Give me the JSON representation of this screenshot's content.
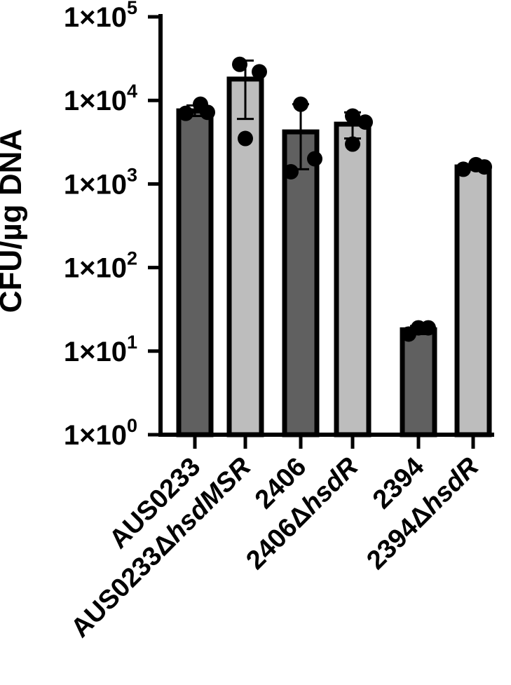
{
  "chart_data": {
    "type": "bar",
    "ylabel": "CFU/µg DNA",
    "y_scale": "log10",
    "ylim": [
      1,
      100000
    ],
    "y_ticks": [
      {
        "value": 1,
        "base": "1×10",
        "exp": "0"
      },
      {
        "value": 10,
        "base": "1×10",
        "exp": "1"
      },
      {
        "value": 100,
        "base": "1×10",
        "exp": "2"
      },
      {
        "value": 1000,
        "base": "1×10",
        "exp": "3"
      },
      {
        "value": 10000,
        "base": "1×10",
        "exp": "4"
      },
      {
        "value": 100000,
        "base": "1×10",
        "exp": "5"
      }
    ],
    "categories": [
      {
        "prefix": "AUS0233",
        "suffix": ""
      },
      {
        "prefix": "AUS0233Δ",
        "suffix": "hsdMSR"
      },
      {
        "prefix": "2406",
        "suffix": ""
      },
      {
        "prefix": "2406Δ",
        "suffix": "hsdR"
      },
      {
        "prefix": "2394",
        "suffix": ""
      },
      {
        "prefix": "2394Δ",
        "suffix": "hsdR"
      }
    ],
    "values": [
      7500,
      18000,
      4200,
      5200,
      18,
      1600
    ],
    "error_low": [
      6500,
      6000,
      1500,
      3500,
      16,
      1500
    ],
    "error_high": [
      8700,
      30000,
      9000,
      7200,
      20,
      1700
    ],
    "points": [
      [
        7000,
        9000,
        7200
      ],
      [
        27000,
        22000,
        3500
      ],
      [
        9000,
        1400,
        2000
      ],
      [
        6500,
        3000,
        5500
      ],
      [
        16,
        19,
        19
      ],
      [
        1500,
        1700,
        1600
      ]
    ],
    "colors": [
      "#606060",
      "#bdbdbd",
      "#606060",
      "#bdbdbd",
      "#606060",
      "#bdbdbd"
    ],
    "grid": false,
    "legend": "none"
  }
}
